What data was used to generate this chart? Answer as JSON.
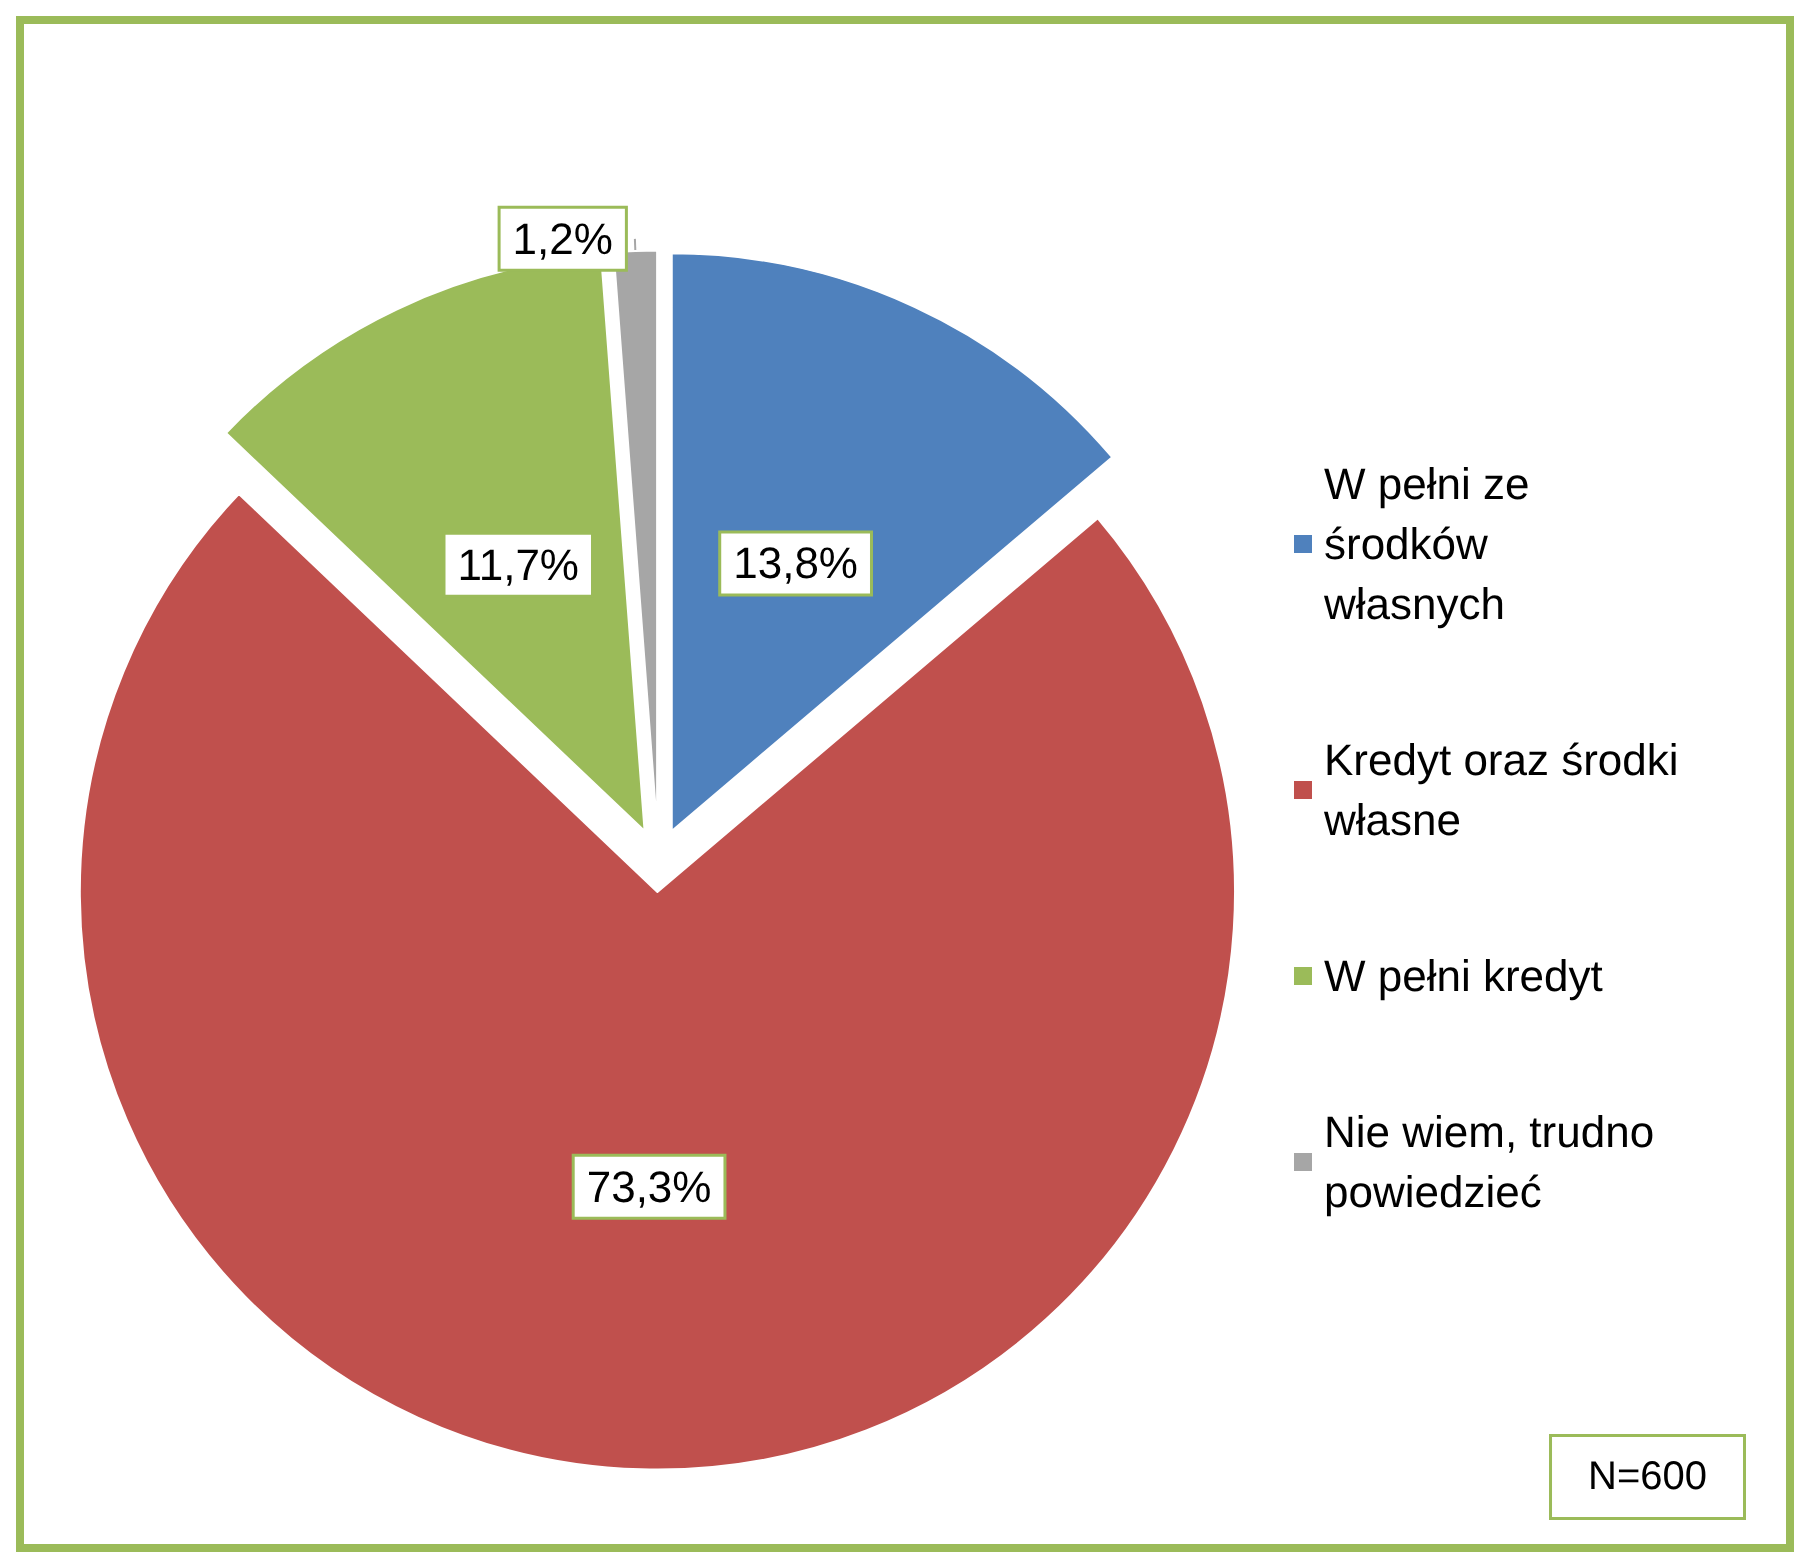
{
  "chart_data": {
    "type": "pie",
    "categories": [
      "W pełni ze środków własnych",
      "Kredyt oraz środki własne",
      "W pełni kredyt",
      "Nie wiem, trudno powiedzieć"
    ],
    "values": [
      13.8,
      73.3,
      11.7,
      1.2
    ],
    "colors": [
      "#4f81bd",
      "#c0504d",
      "#9bbb59",
      "#a6a6a6"
    ],
    "value_labels": [
      "13,8%",
      "73,3%",
      "11,7%",
      "1,2%"
    ],
    "legend": "right",
    "annotations": [
      "N=600"
    ]
  }
}
